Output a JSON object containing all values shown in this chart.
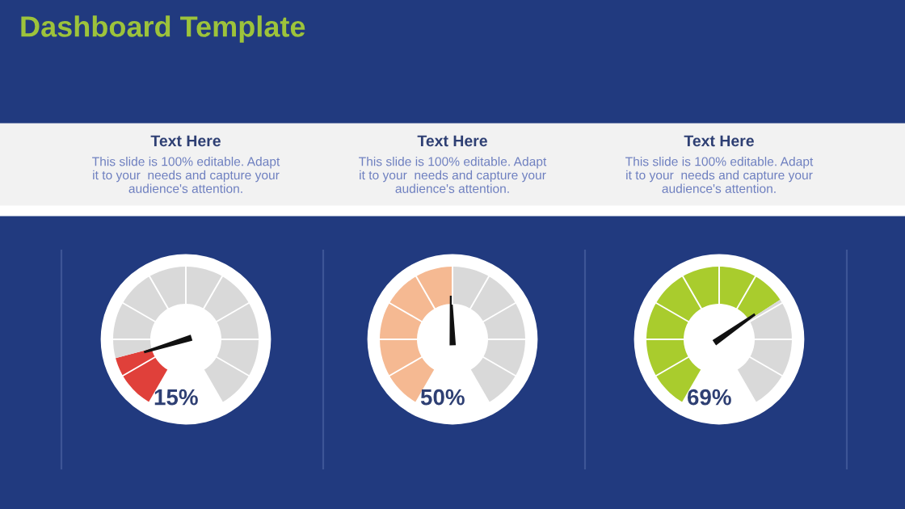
{
  "chart_data": [
    {
      "type": "donut",
      "title": "Text Here",
      "subtitle": "This slide is 100% editable. Adapt\nit to your  needs and capture your\naudience's attention.",
      "annotations": [
        "Dashboard Template"
      ],
      "categories": [
        "15%",
        null
      ],
      "values": [
        15,
        85
      ],
      "colors": [
        "#e0403a",
        "#d9d9d9"
      ],
      "needle": "15%"
    },
    {
      "type": "donut",
      "title": "Text Here",
      "subtitle": "This slide is 100% editable. Adapt\nit to your  needs and capture your\naudience's attention.",
      "categories": [
        "50%",
        null
      ],
      "values": [
        50,
        50
      ],
      "colors": [
        "#f5b992",
        "#d9d9d9"
      ],
      "needle": "50%"
    },
    {
      "type": "donut",
      "title": "Text Here",
      "subtitle": "This slide is 100% editable. Adapt\nit to your  needs and capture your\naudience's attention.",
      "categories": [
        "69%",
        null
      ],
      "values": [
        69,
        31
      ],
      "colors": [
        "#a9cc2d",
        "#d9d9d9"
      ],
      "needle": "69%"
    }
  ]
}
